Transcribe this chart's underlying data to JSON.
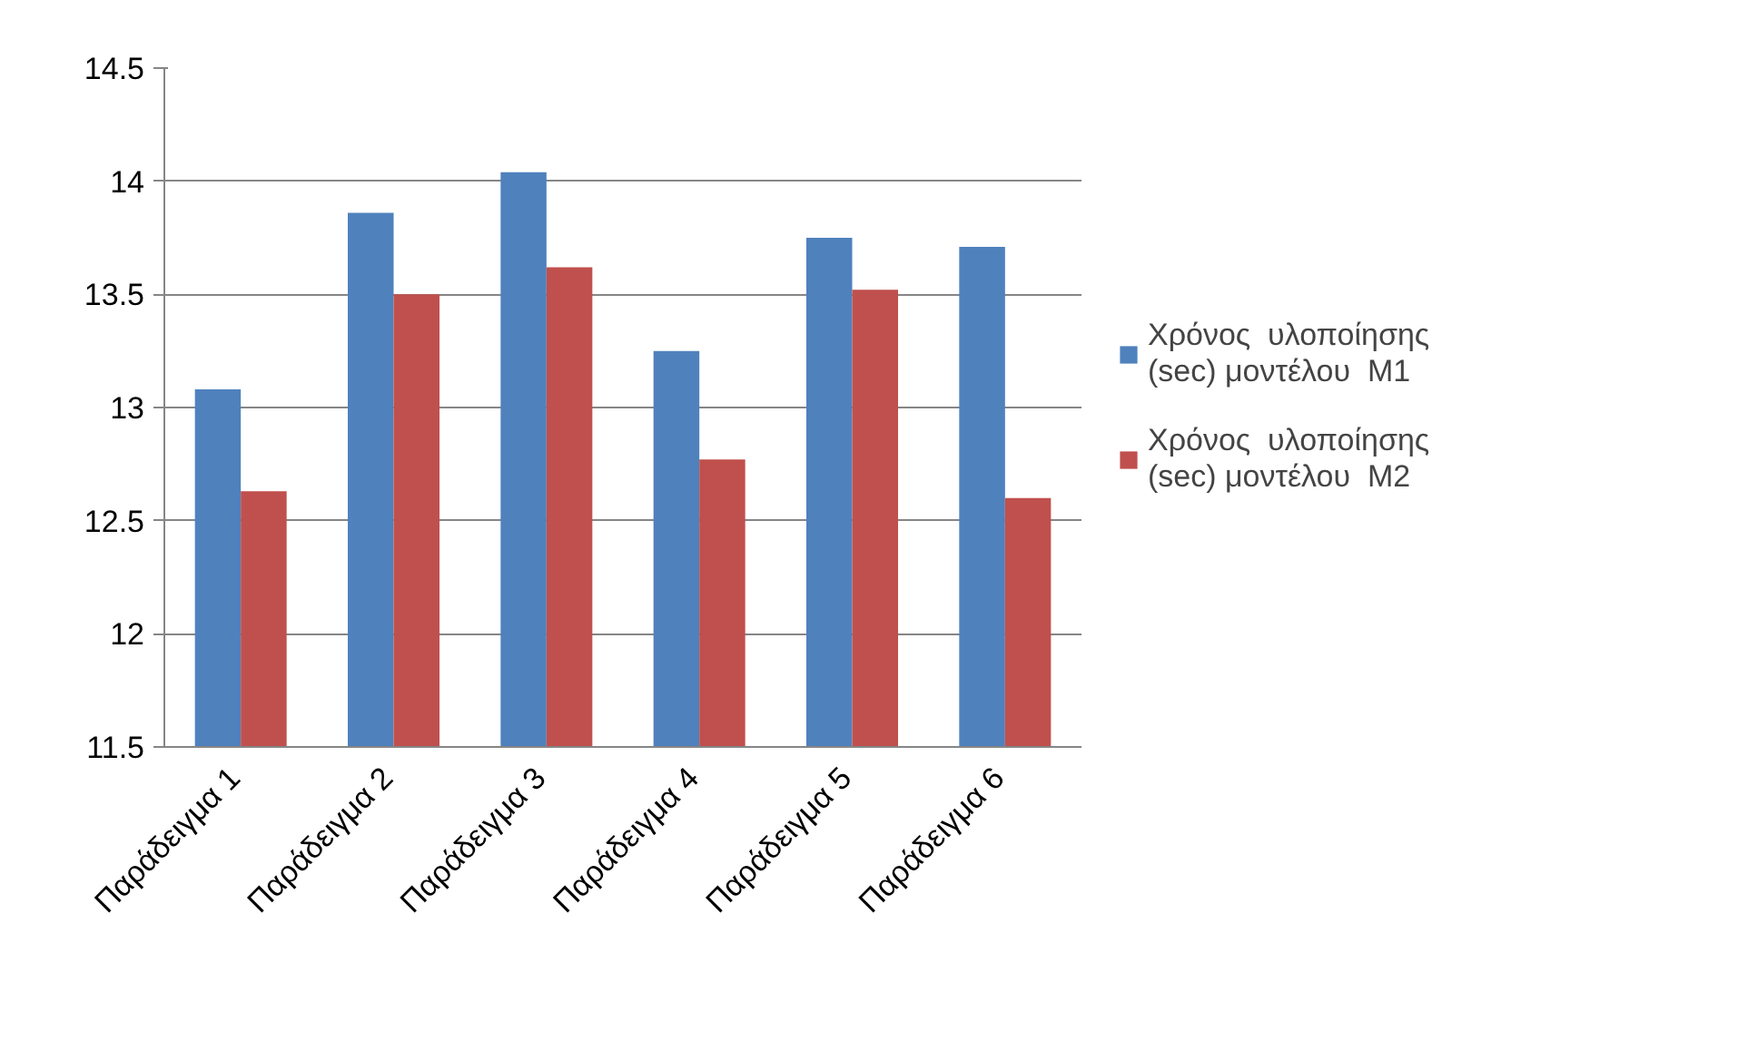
{
  "chart_data": {
    "type": "bar",
    "categories": [
      "Παράδειγμα  1",
      "Παράδειγμα  2",
      "Παράδειγμα  3",
      "Παράδειγμα  4",
      "Παράδειγμα  5",
      "Παράδειγμα  6"
    ],
    "series": [
      {
        "name": "Χρόνος  υλοποίησης (sec) μοντέλου  M1",
        "color": "#4f81bd",
        "values": [
          13.08,
          13.86,
          14.04,
          13.25,
          13.75,
          13.71
        ]
      },
      {
        "name": "Χρόνος  υλοποίησης (sec) μοντέλου  M2",
        "color": "#c0504d",
        "values": [
          12.63,
          13.5,
          13.62,
          12.77,
          13.52,
          12.6
        ]
      }
    ],
    "ylim": [
      11.5,
      14.5
    ],
    "yticks": [
      11.5,
      12,
      12.5,
      13,
      13.5,
      14,
      14.5
    ],
    "grid": "y",
    "legend": "right"
  }
}
